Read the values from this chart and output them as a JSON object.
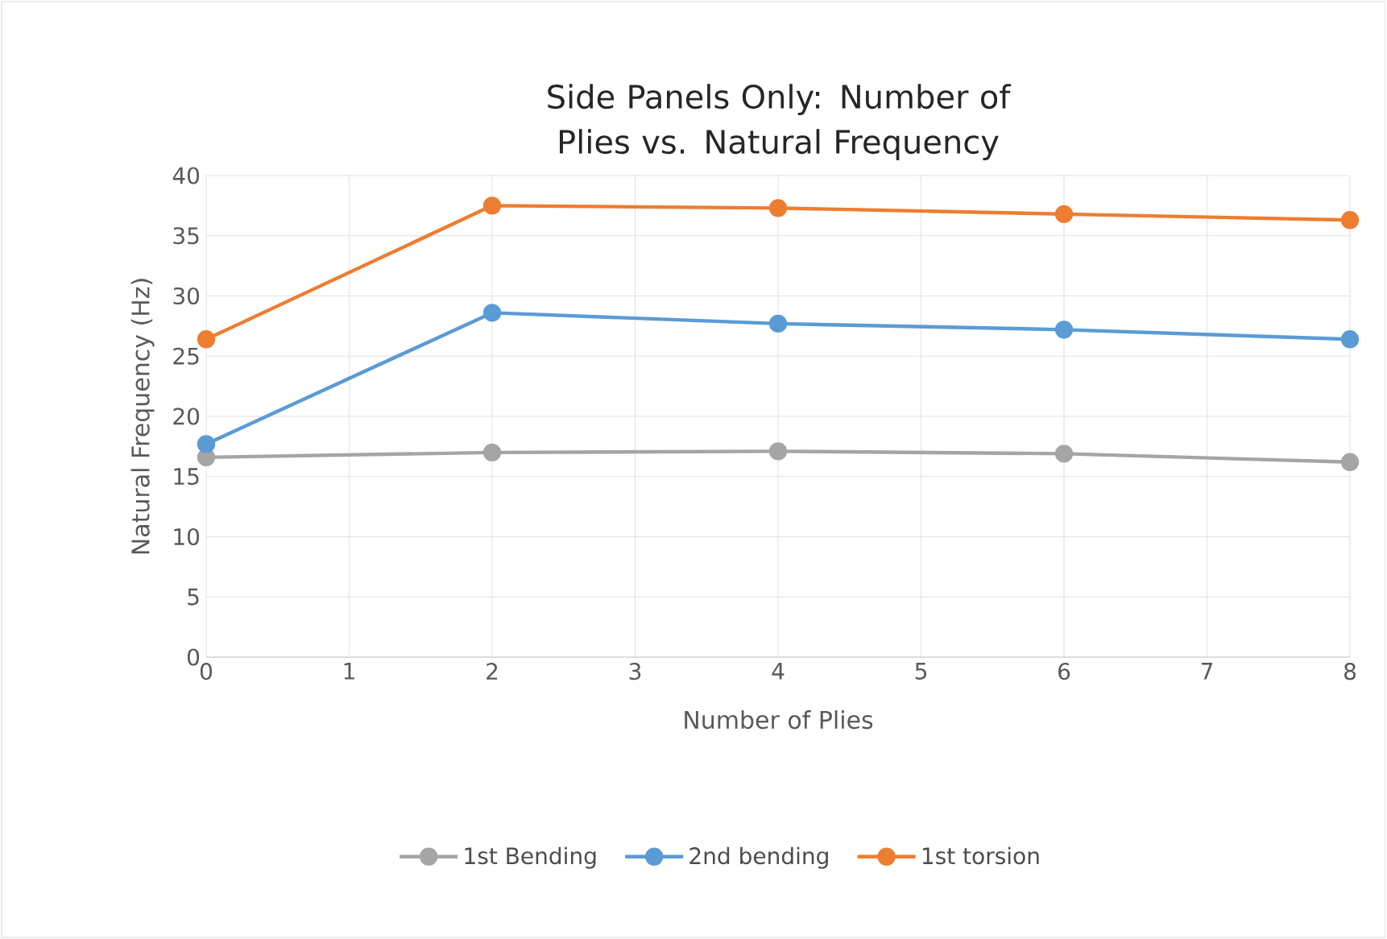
{
  "chart_data": {
    "type": "line",
    "title": "Side Panels Only: Number of Plies vs. Natural Frequency",
    "xlabel": "Number of Plies",
    "ylabel": "Natural Frequency (Hz)",
    "x": [
      0,
      2,
      4,
      6,
      8
    ],
    "series": [
      {
        "name": "1st Bending",
        "color": "#a5a5a5",
        "values": [
          16.6,
          17.0,
          17.1,
          16.9,
          16.2
        ]
      },
      {
        "name": "2nd bending",
        "color": "#5b9bd5",
        "values": [
          17.7,
          28.6,
          27.7,
          27.2,
          26.4
        ]
      },
      {
        "name": "1st torsion",
        "color": "#ed7d31",
        "values": [
          26.4,
          37.5,
          37.3,
          36.8,
          36.3
        ]
      }
    ],
    "xlim": [
      0,
      8
    ],
    "xticks": [
      0,
      1,
      2,
      3,
      4,
      5,
      6,
      7,
      8
    ],
    "ylim": [
      0,
      40
    ],
    "yticks": [
      0,
      5,
      10,
      15,
      20,
      25,
      30,
      35,
      40
    ],
    "grid": true,
    "legend": "bottom",
    "marker": "circle",
    "line_style": "solid"
  }
}
